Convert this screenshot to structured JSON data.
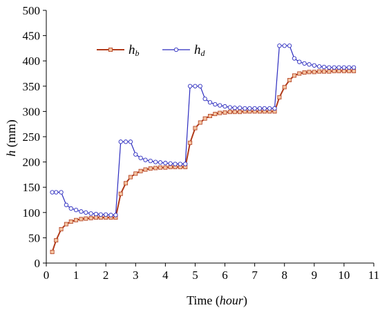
{
  "chart_data": {
    "type": "line",
    "title": "",
    "xlabel_prefix": "Time (",
    "xlabel_unit": "hour",
    "xlabel_suffix": ")",
    "ylabel_var": "h",
    "ylabel_unit": " (mm)",
    "xlim": [
      0,
      11
    ],
    "ylim": [
      0,
      500
    ],
    "xticks": [
      "0",
      "1",
      "2",
      "3",
      "4",
      "5",
      "6",
      "7",
      "8",
      "9",
      "10",
      "11"
    ],
    "yticks": [
      "0",
      "50",
      "100",
      "150",
      "200",
      "250",
      "300",
      "350",
      "400",
      "450",
      "500"
    ],
    "grid": false,
    "legend_position": "top-left",
    "series": [
      {
        "name_main": "h",
        "name_sub": "b",
        "color": "#b03a1a",
        "marker_fill": "#f4c3a0",
        "marker": "square",
        "x": [
          0.2,
          0.33,
          0.5,
          0.67,
          0.83,
          1.0,
          1.17,
          1.33,
          1.5,
          1.67,
          1.83,
          2.0,
          2.17,
          2.33,
          2.5,
          2.67,
          2.83,
          3.0,
          3.17,
          3.33,
          3.5,
          3.67,
          3.83,
          4.0,
          4.17,
          4.33,
          4.5,
          4.67,
          4.83,
          5.0,
          5.17,
          5.33,
          5.5,
          5.67,
          5.83,
          6.0,
          6.17,
          6.33,
          6.5,
          6.67,
          6.83,
          7.0,
          7.17,
          7.33,
          7.5,
          7.67,
          7.83,
          8.0,
          8.17,
          8.33,
          8.5,
          8.67,
          8.83,
          9.0,
          9.17,
          9.33,
          9.5,
          9.67,
          9.83,
          10.0,
          10.17,
          10.33
        ],
        "y": [
          22,
          45,
          67,
          77,
          82,
          85,
          87,
          88,
          89,
          90,
          90,
          90,
          90,
          90,
          137,
          158,
          170,
          177,
          182,
          185,
          187,
          188,
          189,
          189,
          190,
          190,
          190,
          190,
          238,
          267,
          278,
          286,
          291,
          295,
          297,
          298,
          299,
          299,
          299,
          300,
          300,
          300,
          300,
          300,
          300,
          300,
          328,
          348,
          362,
          371,
          375,
          377,
          378,
          378,
          379,
          379,
          379,
          380,
          380,
          380,
          380,
          380
        ]
      },
      {
        "name_main": "h",
        "name_sub": "d",
        "color": "#2b2bbf",
        "marker_fill": "#ffffff",
        "marker": "circle",
        "x": [
          0.2,
          0.33,
          0.5,
          0.67,
          0.83,
          1.0,
          1.17,
          1.33,
          1.5,
          1.67,
          1.83,
          2.0,
          2.17,
          2.33,
          2.5,
          2.67,
          2.83,
          3.0,
          3.17,
          3.33,
          3.5,
          3.67,
          3.83,
          4.0,
          4.17,
          4.33,
          4.5,
          4.67,
          4.83,
          5.0,
          5.17,
          5.33,
          5.5,
          5.67,
          5.83,
          6.0,
          6.17,
          6.33,
          6.5,
          6.67,
          6.83,
          7.0,
          7.17,
          7.33,
          7.5,
          7.67,
          7.83,
          8.0,
          8.17,
          8.33,
          8.5,
          8.67,
          8.83,
          9.0,
          9.17,
          9.33,
          9.5,
          9.67,
          9.83,
          10.0,
          10.17,
          10.33
        ],
        "y": [
          140,
          140,
          140,
          115,
          108,
          105,
          102,
          100,
          98,
          97,
          96,
          96,
          95,
          95,
          240,
          240,
          240,
          215,
          208,
          204,
          202,
          200,
          199,
          198,
          197,
          196,
          196,
          196,
          350,
          350,
          350,
          325,
          318,
          314,
          312,
          310,
          308,
          307,
          307,
          306,
          306,
          306,
          306,
          306,
          306,
          306,
          430,
          430,
          430,
          405,
          398,
          395,
          393,
          391,
          389,
          388,
          387,
          387,
          387,
          387,
          387,
          387
        ]
      }
    ]
  }
}
